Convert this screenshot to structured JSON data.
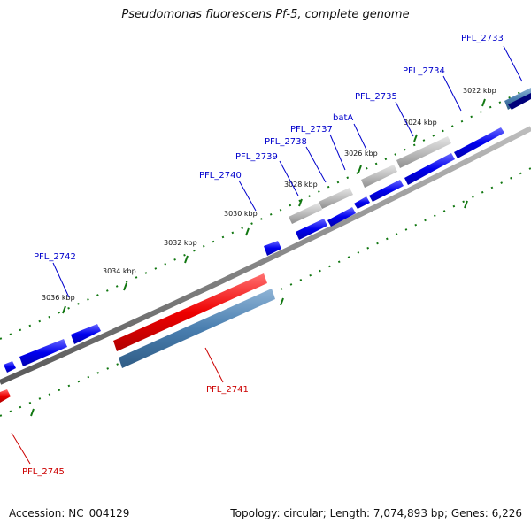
{
  "title": "Pseudomonas fluorescens Pf-5, complete genome",
  "footer": {
    "accession": "Accession: NC_004129",
    "summary": "Topology: circular; Length: 7,074,893 bp; Genes: 6,226"
  },
  "colors": {
    "forward_gene": "#0000ee",
    "reverse_gene": "#ee0000",
    "rna_gene": "#b4b4b4",
    "backbone": "#8a8a8a",
    "tick": "#117711",
    "steelblue": "#4a7fb0"
  },
  "tick_labels": [
    "3022 kbp",
    "3024 kbp",
    "3026 kbp",
    "3028 kbp",
    "3030 kbp",
    "3032 kbp",
    "3034 kbp",
    "3036 kbp"
  ],
  "gene_labels": [
    {
      "text": "PFL_2733",
      "strand": "forward"
    },
    {
      "text": "PFL_2734",
      "strand": "forward"
    },
    {
      "text": "PFL_2735",
      "strand": "forward"
    },
    {
      "text": "batA",
      "strand": "forward"
    },
    {
      "text": "PFL_2737",
      "strand": "forward"
    },
    {
      "text": "PFL_2738",
      "strand": "forward"
    },
    {
      "text": "PFL_2739",
      "strand": "forward"
    },
    {
      "text": "PFL_2740",
      "strand": "forward"
    },
    {
      "text": "PFL_2742",
      "strand": "forward"
    },
    {
      "text": "PFL_2741",
      "strand": "reverse"
    },
    {
      "text": "PFL_2745",
      "strand": "reverse"
    }
  ]
}
